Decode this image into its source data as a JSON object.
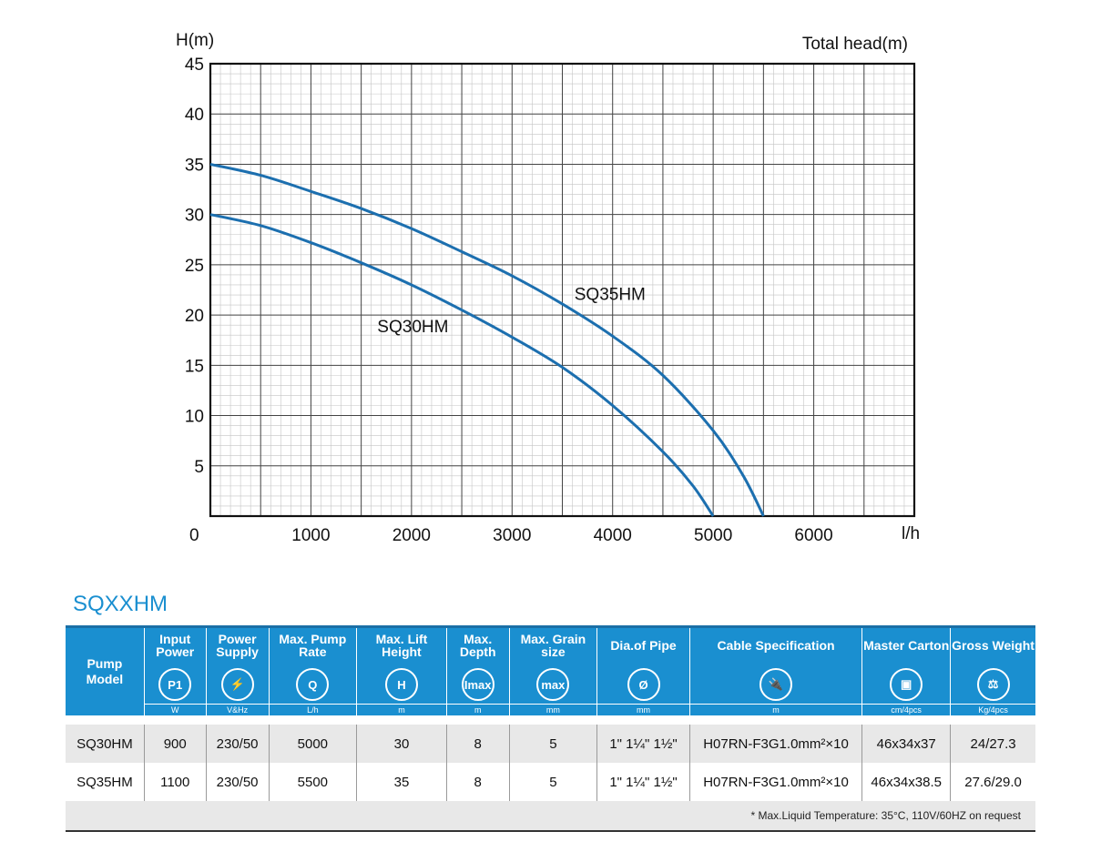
{
  "chart_data": {
    "type": "line",
    "ylabel": "H(m)",
    "title": "Total head(m)",
    "xlabel": "l/h",
    "origin_label": "0",
    "xlim": [
      0,
      7000
    ],
    "ylim": [
      0,
      45
    ],
    "xticks": [
      1000,
      2000,
      3000,
      4000,
      5000,
      6000
    ],
    "yticks": [
      5,
      10,
      15,
      20,
      25,
      30,
      35,
      40,
      45
    ],
    "grid": true,
    "line_color": "#1c6faf",
    "series": [
      {
        "name": "SQ30HM",
        "x": [
          0,
          500,
          1000,
          1500,
          2000,
          2500,
          3000,
          3500,
          4000,
          4500,
          4800,
          5000
        ],
        "y": [
          30,
          28.9,
          27.2,
          25.2,
          23.0,
          20.5,
          17.8,
          14.8,
          11.0,
          6.4,
          3.0,
          0
        ]
      },
      {
        "name": "SQ35HM",
        "x": [
          0,
          500,
          1000,
          1500,
          2000,
          2500,
          3000,
          3500,
          4000,
          4500,
          5000,
          5300,
          5500
        ],
        "y": [
          35,
          33.9,
          32.3,
          30.6,
          28.6,
          26.3,
          23.9,
          21.1,
          17.9,
          14.0,
          8.5,
          4.0,
          0
        ]
      }
    ]
  },
  "table": {
    "series_title": "SQXXHM",
    "model_header": "Pump Model",
    "columns": [
      {
        "title": "Input Power",
        "icon": "P1",
        "unit": "W"
      },
      {
        "title": "Power Supply",
        "icon": "⚡",
        "unit": "V&Hz"
      },
      {
        "title": "Max. Pump Rate",
        "icon": "Q",
        "unit": "L/h"
      },
      {
        "title": "Max. Lift Height",
        "icon": "H",
        "unit": "m"
      },
      {
        "title": "Max. Depth",
        "icon": "Imax",
        "unit": "m"
      },
      {
        "title": "Max. Grain size",
        "icon": "max",
        "unit": "mm"
      },
      {
        "title": "Dia.of Pipe",
        "icon": "Ø",
        "unit": "mm"
      },
      {
        "title": "Cable Specification",
        "icon": "🔌",
        "unit": "m"
      },
      {
        "title": "Master Carton",
        "icon": "▣",
        "unit": "cm/4pcs"
      },
      {
        "title": "Gross Weight",
        "icon": "⚖",
        "unit": "Kg/4pcs"
      }
    ],
    "rows": [
      [
        "SQ30HM",
        "900",
        "230/50",
        "5000",
        "30",
        "8",
        "5",
        "1\" 1¼\" 1½\"",
        "H07RN-F3G1.0mm²×10",
        "46x34x37",
        "24/27.3"
      ],
      [
        "SQ35HM",
        "1100",
        "230/50",
        "5500",
        "35",
        "8",
        "5",
        "1\" 1¼\" 1½\"",
        "H07RN-F3G1.0mm²×10",
        "46x34x38.5",
        "27.6/29.0"
      ]
    ],
    "note": "* Max.Liquid Temperature: 35°C, 110V/60HZ on request"
  }
}
